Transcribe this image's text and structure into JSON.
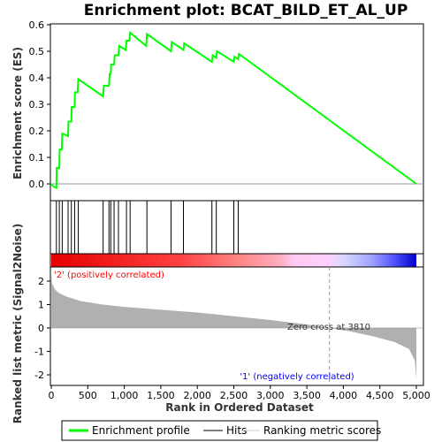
{
  "chart_data": {
    "type": "line",
    "title": "Enrichment plot: BCAT_BILD_ET_AL_UP",
    "top_panel": {
      "ylabel": "Enrichment score (ES)",
      "ylim": [
        -0.03,
        0.6
      ],
      "y_ticks": [
        "0.0",
        "0.1",
        "0.2",
        "0.3",
        "0.4",
        "0.5",
        "0.6"
      ],
      "series": [
        {
          "name": "Enrichment profile",
          "color": "#00ff00",
          "points": [
            [
              0,
              0
            ],
            [
              30,
              -0.01
            ],
            [
              70,
              -0.015
            ],
            [
              75,
              0.06
            ],
            [
              110,
              0.06
            ],
            [
              115,
              0.13
            ],
            [
              145,
              0.13
            ],
            [
              150,
              0.19
            ],
            [
              230,
              0.18
            ],
            [
              235,
              0.235
            ],
            [
              275,
              0.235
            ],
            [
              280,
              0.29
            ],
            [
              320,
              0.29
            ],
            [
              325,
              0.345
            ],
            [
              360,
              0.345
            ],
            [
              370,
              0.395
            ],
            [
              710,
              0.33
            ],
            [
              720,
              0.37
            ],
            [
              790,
              0.37
            ],
            [
              800,
              0.415
            ],
            [
              815,
              0.415
            ],
            [
              820,
              0.45
            ],
            [
              860,
              0.45
            ],
            [
              870,
              0.485
            ],
            [
              920,
              0.485
            ],
            [
              930,
              0.52
            ],
            [
              1020,
              0.505
            ],
            [
              1030,
              0.54
            ],
            [
              1070,
              0.54
            ],
            [
              1080,
              0.57
            ],
            [
              1300,
              0.52
            ],
            [
              1310,
              0.565
            ],
            [
              1640,
              0.5
            ],
            [
              1650,
              0.535
            ],
            [
              1810,
              0.505
            ],
            [
              1820,
              0.53
            ],
            [
              2200,
              0.46
            ],
            [
              2210,
              0.485
            ],
            [
              2260,
              0.475
            ],
            [
              2270,
              0.5
            ],
            [
              2500,
              0.46
            ],
            [
              2510,
              0.48
            ],
            [
              2560,
              0.47
            ],
            [
              2570,
              0.49
            ],
            [
              5000,
              0.0
            ]
          ]
        }
      ]
    },
    "hits_panel": {
      "legend_label": "Hits",
      "hit_ranks": [
        70,
        110,
        150,
        230,
        275,
        320,
        370,
        710,
        790,
        815,
        860,
        920,
        1030,
        1080,
        1310,
        1640,
        1810,
        2200,
        2260,
        2500,
        2560
      ]
    },
    "bottom_panel": {
      "ylabel": "Ranked list metric (Signal2Noise)",
      "xlabel": "Rank in Ordered Dataset",
      "ylim": [
        -2.3,
        2.5
      ],
      "xlim": [
        0,
        5000
      ],
      "y_ticks": [
        "2",
        "1",
        "0",
        "-1",
        "-2"
      ],
      "x_ticks": [
        "0",
        "500",
        "1,000",
        "1,500",
        "2,000",
        "2,500",
        "3,000",
        "3,500",
        "4,000",
        "4,500",
        "5,000"
      ],
      "legend_label": "Ranking metric scores",
      "metric_points": [
        [
          0,
          2.35
        ],
        [
          10,
          1.9
        ],
        [
          50,
          1.65
        ],
        [
          100,
          1.5
        ],
        [
          200,
          1.35
        ],
        [
          400,
          1.15
        ],
        [
          700,
          1.0
        ],
        [
          1000,
          0.9
        ],
        [
          1500,
          0.78
        ],
        [
          2000,
          0.66
        ],
        [
          2500,
          0.5
        ],
        [
          3000,
          0.34
        ],
        [
          3500,
          0.15
        ],
        [
          3810,
          0.0
        ],
        [
          4100,
          -0.15
        ],
        [
          4400,
          -0.35
        ],
        [
          4700,
          -0.6
        ],
        [
          4900,
          -0.9
        ],
        [
          4980,
          -1.4
        ],
        [
          5000,
          -2.2
        ]
      ],
      "zero_cross_label": "Zero cross at 3810",
      "zero_cross_rank": 3810,
      "pos_label": "'2' (positively correlated)",
      "neg_label": "'1' (negatively correlated)",
      "pos_color": "#ff0000",
      "neg_color": "#0000ff"
    },
    "legend": {
      "enrichment": "Enrichment profile",
      "hits": "Hits",
      "ranking": "Ranking metric scores"
    }
  }
}
